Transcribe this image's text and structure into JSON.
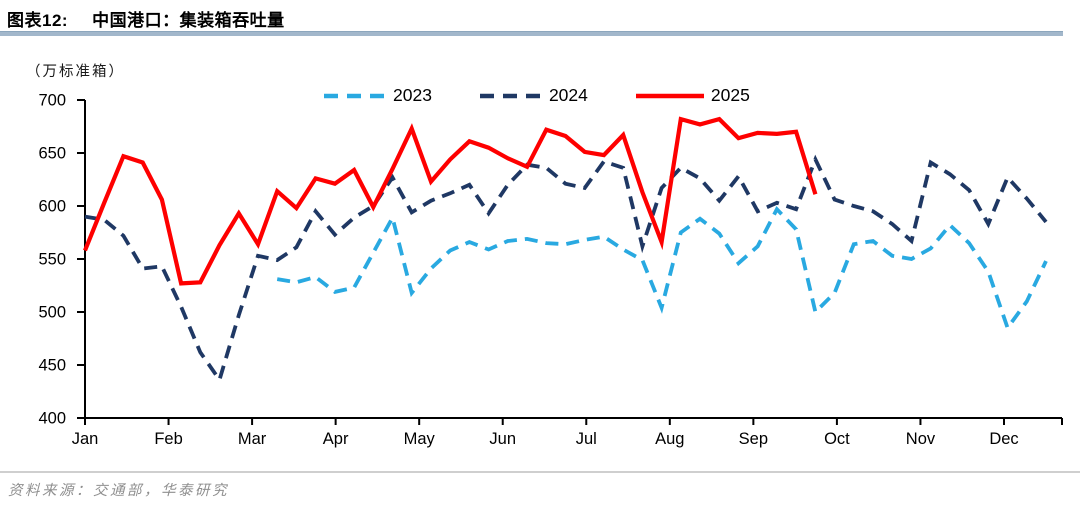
{
  "header": {
    "figure_label": "图表12:",
    "title": "中国港口：集装箱吞吐量"
  },
  "footer": {
    "source": "资料来源：交通部，华泰研究"
  },
  "chart_data": {
    "type": "line",
    "title": "中国港口：集装箱吞吐量",
    "unit_label": "（万标准箱）",
    "xlabel": "",
    "ylabel": "万标准箱",
    "ylim": [
      400,
      700
    ],
    "y_ticks": [
      400,
      450,
      500,
      550,
      600,
      650,
      700
    ],
    "x_labels": [
      "Jan",
      "Feb",
      "Mar",
      "Apr",
      "May",
      "Jun",
      "Jul",
      "Aug",
      "Sep",
      "Oct",
      "Nov",
      "Dec"
    ],
    "grid": false,
    "legend_position": "top-center",
    "x_unit": "week-of-year",
    "weeks_total": 51,
    "axis_color": "#000000",
    "series": [
      {
        "name": "2023",
        "color": "#29A9E1",
        "style": "dashed",
        "start_week": 10,
        "values": [
          531,
          528,
          533,
          519,
          523,
          556,
          589,
          518,
          541,
          558,
          566,
          559,
          567,
          569,
          565,
          564,
          568,
          571,
          559,
          549,
          504,
          575,
          588,
          574,
          546,
          562,
          597,
          578,
          500,
          518,
          564,
          567,
          553,
          550,
          560,
          582,
          565,
          538,
          485,
          510,
          548
        ]
      },
      {
        "name": "2024",
        "color": "#1F3864",
        "style": "dashed",
        "start_week": 0,
        "values": [
          590,
          587,
          572,
          541,
          543,
          505,
          462,
          436,
          497,
          553,
          549,
          561,
          595,
          573,
          589,
          600,
          627,
          594,
          605,
          612,
          620,
          593,
          620,
          639,
          636,
          621,
          617,
          642,
          636,
          562,
          617,
          636,
          626,
          605,
          628,
          595,
          603,
          597,
          644,
          606,
          600,
          595,
          583,
          567,
          641,
          630,
          615,
          583,
          627,
          607,
          585
        ]
      },
      {
        "name": "2025",
        "color": "#FE0000",
        "style": "solid",
        "start_week": 0,
        "values": [
          558,
          603,
          647,
          641,
          606,
          527,
          528,
          563,
          593,
          564,
          614,
          598,
          626,
          621,
          634,
          599,
          635,
          673,
          623,
          644,
          661,
          655,
          645,
          637,
          672,
          666,
          651,
          648,
          667,
          613,
          566,
          682,
          677,
          682,
          664,
          669,
          668,
          670,
          611
        ]
      }
    ]
  }
}
